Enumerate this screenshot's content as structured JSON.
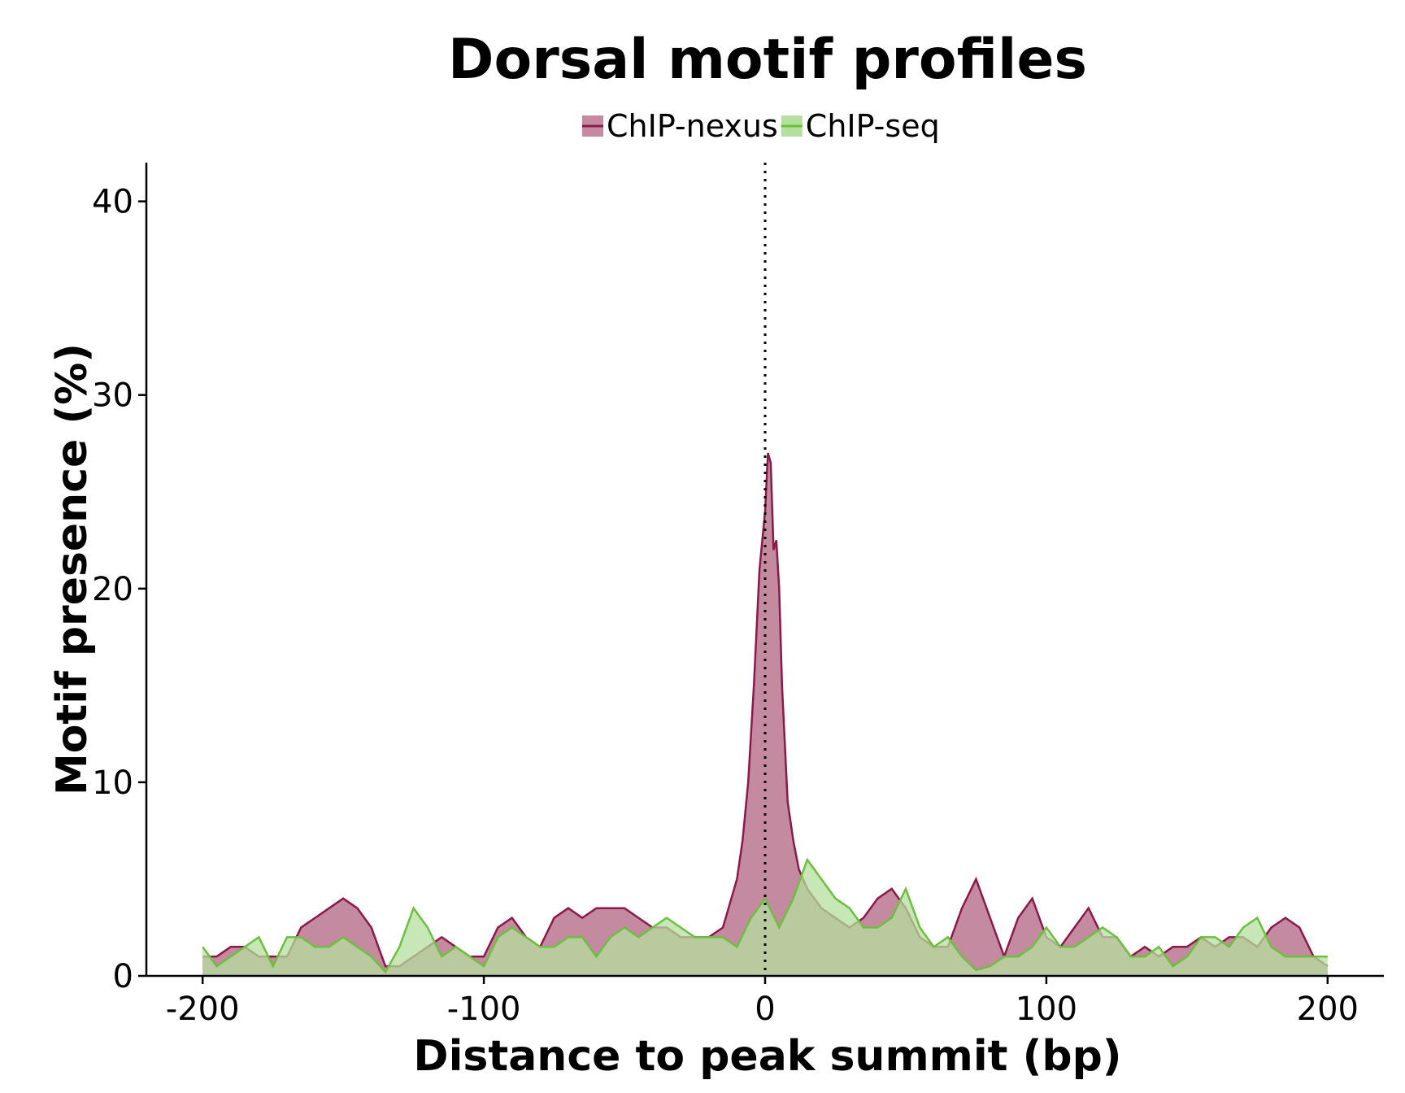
{
  "chart_data": {
    "type": "area",
    "title": "Dorsal motif profiles",
    "xlabel": "Distance to peak summit (bp)",
    "ylabel": "Motif presence (%)",
    "xlim": [
      -220,
      220
    ],
    "ylim": [
      0,
      42
    ],
    "x_ticks": [
      -200,
      -100,
      0,
      100,
      200
    ],
    "x_tick_labels": [
      "-200",
      "-100",
      "0",
      "100",
      "200"
    ],
    "y_ticks": [
      0,
      10,
      20,
      30,
      40
    ],
    "y_tick_labels": [
      "0",
      "10",
      "20",
      "30",
      "40"
    ],
    "reference_line": {
      "x": 0,
      "style": "dotted"
    },
    "grid": false,
    "legend_position": "top-center",
    "series": [
      {
        "name": "ChIP-nexus",
        "color": "#8b1a4a",
        "fill": "#c48aa0",
        "points": [
          [
            -200,
            1.0
          ],
          [
            -195,
            1.0
          ],
          [
            -190,
            1.5
          ],
          [
            -185,
            1.5
          ],
          [
            -180,
            1.0
          ],
          [
            -175,
            1.0
          ],
          [
            -170,
            1.0
          ],
          [
            -165,
            2.5
          ],
          [
            -160,
            3.0
          ],
          [
            -155,
            3.5
          ],
          [
            -150,
            4.0
          ],
          [
            -145,
            3.5
          ],
          [
            -140,
            2.5
          ],
          [
            -135,
            0.5
          ],
          [
            -130,
            0.5
          ],
          [
            -125,
            1.0
          ],
          [
            -120,
            1.5
          ],
          [
            -115,
            2.0
          ],
          [
            -110,
            1.5
          ],
          [
            -105,
            1.0
          ],
          [
            -100,
            1.0
          ],
          [
            -95,
            2.5
          ],
          [
            -90,
            3.0
          ],
          [
            -85,
            2.0
          ],
          [
            -80,
            1.5
          ],
          [
            -75,
            3.0
          ],
          [
            -70,
            3.5
          ],
          [
            -65,
            3.0
          ],
          [
            -60,
            3.5
          ],
          [
            -55,
            3.5
          ],
          [
            -50,
            3.5
          ],
          [
            -45,
            3.0
          ],
          [
            -40,
            2.5
          ],
          [
            -35,
            2.5
          ],
          [
            -30,
            2.0
          ],
          [
            -25,
            2.0
          ],
          [
            -20,
            2.0
          ],
          [
            -15,
            2.5
          ],
          [
            -10,
            5.0
          ],
          [
            -8,
            7.0
          ],
          [
            -6,
            10.0
          ],
          [
            -4,
            15.0
          ],
          [
            -2,
            21.0
          ],
          [
            0,
            24.0
          ],
          [
            1,
            27.0
          ],
          [
            2,
            26.5
          ],
          [
            3,
            22.0
          ],
          [
            4,
            22.5
          ],
          [
            5,
            20.0
          ],
          [
            6,
            15.0
          ],
          [
            8,
            9.0
          ],
          [
            10,
            7.0
          ],
          [
            12,
            5.5
          ],
          [
            15,
            4.5
          ],
          [
            20,
            3.5
          ],
          [
            25,
            3.0
          ],
          [
            30,
            2.5
          ],
          [
            35,
            3.0
          ],
          [
            40,
            4.0
          ],
          [
            45,
            4.5
          ],
          [
            50,
            3.5
          ],
          [
            55,
            2.0
          ],
          [
            60,
            1.5
          ],
          [
            65,
            1.5
          ],
          [
            70,
            3.5
          ],
          [
            75,
            5.0
          ],
          [
            80,
            3.0
          ],
          [
            85,
            1.0
          ],
          [
            90,
            3.0
          ],
          [
            95,
            4.0
          ],
          [
            100,
            2.0
          ],
          [
            105,
            1.5
          ],
          [
            110,
            2.5
          ],
          [
            115,
            3.5
          ],
          [
            120,
            2.0
          ],
          [
            125,
            2.0
          ],
          [
            130,
            1.0
          ],
          [
            135,
            1.5
          ],
          [
            140,
            1.0
          ],
          [
            145,
            1.5
          ],
          [
            150,
            1.5
          ],
          [
            155,
            2.0
          ],
          [
            160,
            1.5
          ],
          [
            165,
            2.0
          ],
          [
            170,
            2.0
          ],
          [
            175,
            1.5
          ],
          [
            180,
            2.5
          ],
          [
            185,
            3.0
          ],
          [
            190,
            2.5
          ],
          [
            195,
            1.0
          ],
          [
            200,
            0.5
          ]
        ]
      },
      {
        "name": "ChIP-seq",
        "color": "#6cbf3f",
        "fill": "#b5df9e",
        "points": [
          [
            -200,
            1.5
          ],
          [
            -195,
            0.5
          ],
          [
            -190,
            1.0
          ],
          [
            -185,
            1.5
          ],
          [
            -180,
            2.0
          ],
          [
            -175,
            0.5
          ],
          [
            -170,
            2.0
          ],
          [
            -165,
            2.0
          ],
          [
            -160,
            1.5
          ],
          [
            -155,
            1.5
          ],
          [
            -150,
            2.0
          ],
          [
            -145,
            1.5
          ],
          [
            -140,
            1.0
          ],
          [
            -135,
            0.2
          ],
          [
            -130,
            1.5
          ],
          [
            -125,
            3.5
          ],
          [
            -120,
            2.5
          ],
          [
            -115,
            1.0
          ],
          [
            -110,
            1.5
          ],
          [
            -105,
            1.0
          ],
          [
            -100,
            0.5
          ],
          [
            -95,
            2.0
          ],
          [
            -90,
            2.5
          ],
          [
            -85,
            2.0
          ],
          [
            -80,
            1.5
          ],
          [
            -75,
            1.5
          ],
          [
            -70,
            2.0
          ],
          [
            -65,
            2.0
          ],
          [
            -60,
            1.0
          ],
          [
            -55,
            2.0
          ],
          [
            -50,
            2.5
          ],
          [
            -45,
            2.0
          ],
          [
            -40,
            2.5
          ],
          [
            -35,
            3.0
          ],
          [
            -30,
            2.5
          ],
          [
            -25,
            2.0
          ],
          [
            -20,
            2.0
          ],
          [
            -15,
            2.0
          ],
          [
            -10,
            1.5
          ],
          [
            -5,
            3.0
          ],
          [
            0,
            4.0
          ],
          [
            5,
            2.5
          ],
          [
            10,
            4.0
          ],
          [
            15,
            6.0
          ],
          [
            20,
            5.0
          ],
          [
            25,
            4.0
          ],
          [
            30,
            3.5
          ],
          [
            35,
            2.5
          ],
          [
            40,
            2.5
          ],
          [
            45,
            3.0
          ],
          [
            50,
            4.5
          ],
          [
            55,
            2.5
          ],
          [
            60,
            1.5
          ],
          [
            65,
            2.0
          ],
          [
            70,
            1.0
          ],
          [
            75,
            0.3
          ],
          [
            80,
            0.5
          ],
          [
            85,
            1.0
          ],
          [
            90,
            1.0
          ],
          [
            95,
            1.5
          ],
          [
            100,
            2.5
          ],
          [
            105,
            1.5
          ],
          [
            110,
            1.5
          ],
          [
            115,
            2.0
          ],
          [
            120,
            2.5
          ],
          [
            125,
            2.0
          ],
          [
            130,
            1.0
          ],
          [
            135,
            1.0
          ],
          [
            140,
            1.5
          ],
          [
            145,
            0.5
          ],
          [
            150,
            1.0
          ],
          [
            155,
            2.0
          ],
          [
            160,
            2.0
          ],
          [
            165,
            1.5
          ],
          [
            170,
            2.5
          ],
          [
            175,
            3.0
          ],
          [
            180,
            1.5
          ],
          [
            185,
            1.0
          ],
          [
            190,
            1.0
          ],
          [
            195,
            1.0
          ],
          [
            200,
            1.0
          ]
        ]
      }
    ]
  }
}
